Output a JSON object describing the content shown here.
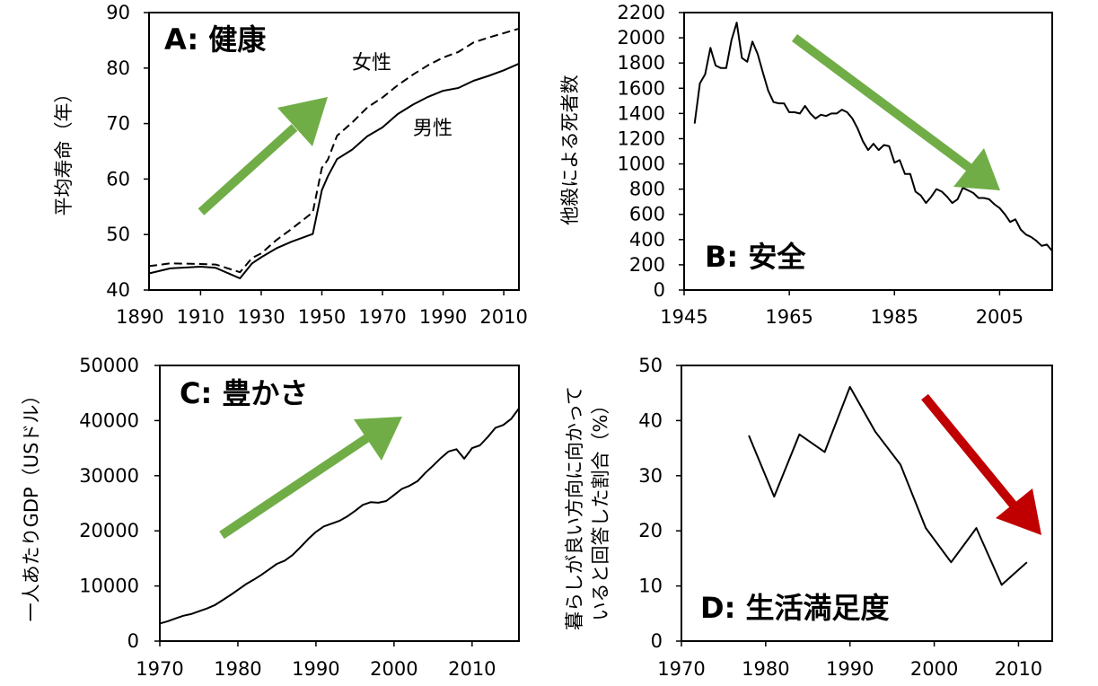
{
  "chart_data": [
    {
      "id": "A",
      "type": "line",
      "title": "A: 健康",
      "ylabel": "平均寿命（年）",
      "xlabel": "",
      "xlim": [
        1893,
        2015
      ],
      "ylim": [
        40,
        90
      ],
      "xticks": [
        1890,
        1910,
        1930,
        1950,
        1970,
        1990,
        2010
      ],
      "yticks": [
        40,
        50,
        60,
        70,
        80,
        90
      ],
      "series": [
        {
          "name": "女性",
          "style": "dashed",
          "x": [
            1893,
            1900,
            1910,
            1915,
            1923,
            1927,
            1930,
            1935,
            1940,
            1947,
            1950,
            1952,
            1955,
            1960,
            1965,
            1970,
            1975,
            1980,
            1985,
            1990,
            1995,
            2000,
            2005,
            2010,
            2015
          ],
          "y": [
            44.3,
            44.8,
            44.7,
            44.6,
            43.2,
            45.8,
            46.6,
            49.0,
            51.0,
            54.0,
            62.0,
            63.5,
            67.8,
            70.2,
            72.9,
            74.7,
            76.9,
            78.8,
            80.5,
            81.9,
            82.9,
            84.6,
            85.5,
            86.3,
            87.1
          ]
        },
        {
          "name": "男性",
          "style": "solid",
          "x": [
            1893,
            1900,
            1910,
            1915,
            1923,
            1927,
            1930,
            1935,
            1940,
            1947,
            1950,
            1952,
            1955,
            1960,
            1965,
            1970,
            1975,
            1980,
            1985,
            1990,
            1995,
            2000,
            2005,
            2010,
            2015
          ],
          "y": [
            43.0,
            43.9,
            44.2,
            44.0,
            42.1,
            44.8,
            45.9,
            47.5,
            48.7,
            50.1,
            58.0,
            60.5,
            63.6,
            65.3,
            67.7,
            69.3,
            71.7,
            73.4,
            74.8,
            75.9,
            76.4,
            77.7,
            78.6,
            79.6,
            80.8
          ]
        }
      ],
      "annotations": [
        "女性",
        "男性"
      ],
      "trend_arrow": {
        "direction": "up",
        "color": "#70ad47"
      }
    },
    {
      "id": "B",
      "type": "line",
      "title": "B: 安全",
      "ylabel": "他殺による死者数",
      "xlabel": "",
      "xlim": [
        1945,
        2015
      ],
      "ylim": [
        0,
        2200
      ],
      "xticks": [
        1945,
        1965,
        1985,
        2005
      ],
      "yticks": [
        0,
        200,
        400,
        600,
        800,
        1000,
        1200,
        1400,
        1600,
        1800,
        2000,
        2200
      ],
      "series": [
        {
          "name": "他殺による死者数",
          "style": "solid",
          "x": [
            1947,
            1948,
            1949,
            1950,
            1951,
            1952,
            1953,
            1954,
            1955,
            1956,
            1957,
            1958,
            1959,
            1960,
            1961,
            1962,
            1963,
            1964,
            1965,
            1966,
            1967,
            1968,
            1969,
            1970,
            1971,
            1972,
            1973,
            1974,
            1975,
            1976,
            1977,
            1978,
            1979,
            1980,
            1981,
            1982,
            1983,
            1984,
            1985,
            1986,
            1987,
            1988,
            1989,
            1990,
            1991,
            1992,
            1993,
            1994,
            1995,
            1996,
            1997,
            1998,
            1999,
            2000,
            2001,
            2002,
            2003,
            2004,
            2005,
            2006,
            2007,
            2008,
            2009,
            2010,
            2011,
            2012,
            2013,
            2014,
            2015
          ],
          "y": [
            1320,
            1640,
            1710,
            1920,
            1780,
            1760,
            1760,
            1980,
            2120,
            1840,
            1810,
            1970,
            1870,
            1720,
            1580,
            1490,
            1480,
            1480,
            1410,
            1410,
            1400,
            1460,
            1400,
            1360,
            1390,
            1380,
            1400,
            1400,
            1430,
            1410,
            1360,
            1280,
            1180,
            1110,
            1160,
            1110,
            1150,
            1140,
            1010,
            1030,
            920,
            920,
            780,
            750,
            690,
            740,
            800,
            780,
            740,
            690,
            720,
            810,
            790,
            770,
            730,
            730,
            720,
            680,
            650,
            600,
            540,
            560,
            480,
            440,
            420,
            390,
            350,
            360,
            310
          ]
        }
      ],
      "trend_arrow": {
        "direction": "down",
        "color": "#70ad47"
      }
    },
    {
      "id": "C",
      "type": "line",
      "title": "C: 豊かさ",
      "ylabel": "一人あたりGDP（USドル）",
      "xlabel": "",
      "xlim": [
        1970,
        2016
      ],
      "ylim": [
        0,
        50000
      ],
      "xticks": [
        1970,
        1980,
        1990,
        2000,
        2010
      ],
      "yticks": [
        0,
        10000,
        20000,
        30000,
        40000,
        50000
      ],
      "series": [
        {
          "name": "一人あたりGDP",
          "style": "solid",
          "x": [
            1970,
            1971,
            1972,
            1973,
            1974,
            1975,
            1976,
            1977,
            1978,
            1979,
            1980,
            1981,
            1982,
            1983,
            1984,
            1985,
            1986,
            1987,
            1988,
            1989,
            1990,
            1991,
            1992,
            1993,
            1994,
            1995,
            1996,
            1997,
            1998,
            1999,
            2000,
            2001,
            2002,
            2003,
            2004,
            2005,
            2006,
            2007,
            2008,
            2009,
            2010,
            2011,
            2012,
            2013,
            2014,
            2015,
            2016
          ],
          "y": [
            3200,
            3600,
            4100,
            4600,
            4900,
            5400,
            5900,
            6500,
            7400,
            8300,
            9300,
            10300,
            11100,
            12000,
            13000,
            14000,
            14600,
            15600,
            17000,
            18500,
            19800,
            20800,
            21300,
            21800,
            22600,
            23600,
            24700,
            25200,
            25100,
            25400,
            26500,
            27600,
            28200,
            29000,
            30500,
            31800,
            33200,
            34400,
            34800,
            33100,
            35000,
            35500,
            37000,
            38700,
            39200,
            40300,
            42200
          ]
        }
      ],
      "trend_arrow": {
        "direction": "up",
        "color": "#70ad47"
      }
    },
    {
      "id": "D",
      "type": "line",
      "title": "D: 生活満足度",
      "ylabel": [
        "暮らしが良い方向に向かって",
        "いると回答した割合（%）"
      ],
      "xlabel": "",
      "xlim": [
        1970,
        2014
      ],
      "ylim": [
        0,
        50
      ],
      "xticks": [
        1970,
        1980,
        1990,
        2000,
        2010
      ],
      "yticks": [
        0,
        10,
        20,
        30,
        40,
        50
      ],
      "series": [
        {
          "name": "暮らしが良い方向に向かっていると回答した割合",
          "style": "solid",
          "x": [
            1978,
            1981,
            1984,
            1987,
            1990,
            1993,
            1996,
            1999,
            2002,
            2005,
            2008,
            2011
          ],
          "y": [
            37.3,
            26.2,
            37.5,
            34.3,
            46.1,
            38.0,
            32.0,
            20.5,
            14.3,
            20.5,
            10.2,
            14.3
          ]
        }
      ],
      "trend_arrow": {
        "direction": "down",
        "color": "#c00000"
      }
    }
  ]
}
